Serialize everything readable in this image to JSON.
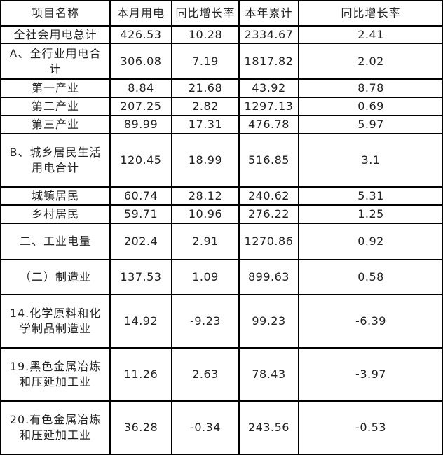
{
  "headers": [
    "项目名称",
    "本月用电",
    "同比增长率",
    "本年累计",
    "同比增长率"
  ],
  "rows": [
    [
      "全社会用电总计",
      "426.53",
      "10.28",
      "2334.67",
      "2.41"
    ],
    [
      "A、全行业用电合计",
      "306.08",
      "7.19",
      "1817.82",
      "2.02"
    ],
    [
      "第一产业",
      "8.84",
      "21.68",
      "43.92",
      "8.78"
    ],
    [
      "第二产业",
      "207.25",
      "2.82",
      "1297.13",
      "0.69"
    ],
    [
      "第三产业",
      "89.99",
      "17.31",
      "476.78",
      "5.97"
    ],
    [
      "B、城乡居民生活用电合计",
      "120.45",
      "18.99",
      "516.85",
      "3.1"
    ],
    [
      "城镇居民",
      "60.74",
      "28.12",
      "240.62",
      "5.31"
    ],
    [
      "乡村居民",
      "59.71",
      "10.96",
      "276.22",
      "1.25"
    ],
    [
      "二、工业电量",
      "202.4",
      "2.91",
      "1270.86",
      "0.92"
    ],
    [
      "（二）制造业",
      "137.53",
      "1.09",
      "899.63",
      "0.58"
    ],
    [
      "14.化学原料和化学制品制造业",
      "14.92",
      "-9.23",
      "99.23",
      "-6.39"
    ],
    [
      "19.黑色金属冶炼和压延加工业",
      "11.26",
      "2.63",
      "78.43",
      "-3.97"
    ],
    [
      "20.有色金属冶炼和压延加工业",
      "36.28",
      "-0.34",
      "243.56",
      "-0.53"
    ]
  ]
}
